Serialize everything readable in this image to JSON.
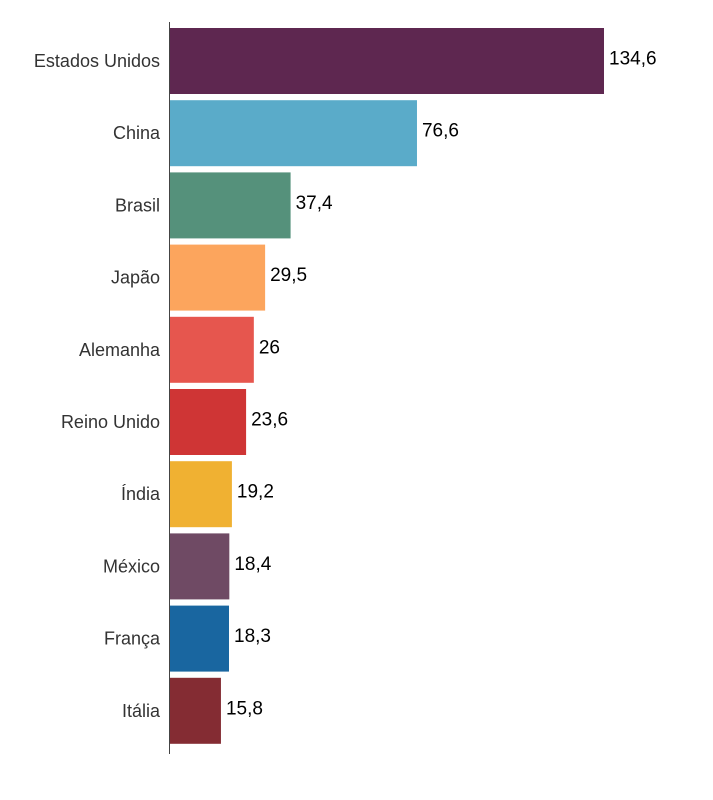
{
  "chart_data": {
    "type": "bar",
    "orientation": "horizontal",
    "categories": [
      "Estados Unidos",
      "China",
      "Brasil",
      "Japão",
      "Alemanha",
      "Reino Unido",
      "Índia",
      "México",
      "França",
      "Itália"
    ],
    "values": [
      134.6,
      76.6,
      37.4,
      29.5,
      26,
      23.6,
      19.2,
      18.4,
      18.3,
      15.8
    ],
    "value_labels": [
      "134,6",
      "76,6",
      "37,4",
      "29,5",
      "26",
      "23,6",
      "19,2",
      "18,4",
      "18,3",
      "15,8"
    ],
    "colors": [
      "#5e2750",
      "#5aabc9",
      "#55917b",
      "#fca55d",
      "#e6564e",
      "#cf3535",
      "#f0b132",
      "#6f4a64",
      "#1966a0",
      "#842c33"
    ],
    "xlim": [
      0,
      134.6
    ],
    "grid": false,
    "legend": "none",
    "title": "",
    "xlabel": "",
    "ylabel": ""
  }
}
